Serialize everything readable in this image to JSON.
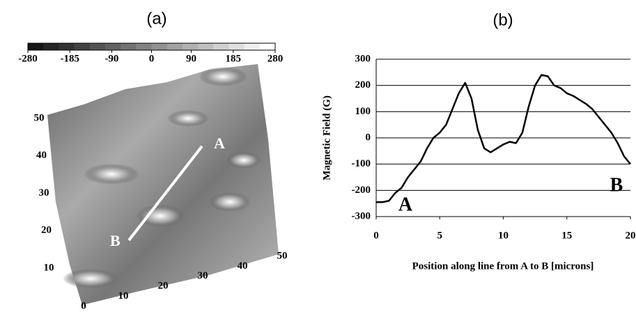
{
  "chart_data": [
    {
      "type": "surface",
      "title": "(a)",
      "colorbar_range": [
        -280,
        280
      ],
      "colorbar_ticks": [
        -280,
        -185,
        -90,
        0,
        90,
        185,
        280
      ],
      "x_axis_ticks": [
        0,
        10,
        20,
        30,
        40,
        50
      ],
      "y_axis_ticks": [
        10,
        20,
        30,
        40,
        50
      ],
      "annotations": [
        "A",
        "B"
      ]
    },
    {
      "type": "line",
      "title": "(b)",
      "xlabel": "Position along line from A to B [microns]",
      "ylabel": "Magnetic Field (G)",
      "x": [
        0,
        0.5,
        1,
        1.5,
        2,
        2.5,
        3,
        3.5,
        4,
        4.5,
        5,
        5.5,
        6,
        6.5,
        7,
        7.5,
        8,
        8.5,
        9,
        9.5,
        10,
        10.5,
        11,
        11.5,
        12,
        12.5,
        13,
        13.5,
        14,
        14.5,
        15,
        15.5,
        16,
        16.5,
        17,
        17.5,
        18,
        18.5,
        19,
        19.5,
        20
      ],
      "series": [
        {
          "color": "#000000",
          "values": [
            -245,
            -245,
            -240,
            -210,
            -190,
            -150,
            -120,
            -90,
            -40,
            0,
            20,
            50,
            110,
            170,
            210,
            150,
            30,
            -40,
            -55,
            -40,
            -25,
            -15,
            -20,
            20,
            120,
            200,
            240,
            235,
            200,
            190,
            170,
            160,
            145,
            130,
            110,
            80,
            50,
            20,
            -20,
            -70,
            -100
          ]
        }
      ],
      "xlim": [
        0,
        20
      ],
      "xticks": [
        0,
        5,
        10,
        15,
        20
      ],
      "ylim": [
        -300,
        300
      ],
      "yticks": [
        -300,
        -200,
        -100,
        0,
        100,
        200,
        300
      ],
      "grid": true,
      "annotations": [
        "A",
        "B"
      ]
    }
  ]
}
